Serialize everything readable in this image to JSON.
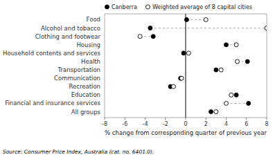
{
  "chart_data": {
    "type": "dumbbell",
    "orientation": "horizontal",
    "categories": [
      "Food",
      "Alcohol and tobacco",
      "Clothing and footwear",
      "Housing",
      "Household contents and services",
      "Health",
      "Transportation",
      "Communication",
      "Recreation",
      "Education",
      "Financial and insurance services",
      "All groups"
    ],
    "series": [
      {
        "name": "Canberra",
        "color": "#000000",
        "marker": "circle",
        "values": [
          0.1,
          -3.5,
          -3.2,
          4.0,
          -0.2,
          6.1,
          3.0,
          -0.5,
          -1.5,
          5.0,
          6.2,
          2.5
        ]
      },
      {
        "name": "Weighted average of 8 capital cities",
        "color": "#ffffff",
        "marker": "circle",
        "values": [
          2.0,
          8.0,
          -4.5,
          5.0,
          0.3,
          5.1,
          3.5,
          -0.4,
          -1.2,
          4.5,
          4.0,
          3.0
        ]
      }
    ],
    "x_label": "% change from corresponding quarter of previous year",
    "annotations": [
      "Source: Consumer Price Index, Australia (cat. no. 6401.0)."
    ],
    "xlim": [
      -8,
      8
    ],
    "xticks": [
      -8,
      -6,
      -4,
      -2,
      0,
      2,
      4,
      6,
      8
    ],
    "vlines": [
      0
    ],
    "grid": false,
    "legend": "upper left"
  }
}
